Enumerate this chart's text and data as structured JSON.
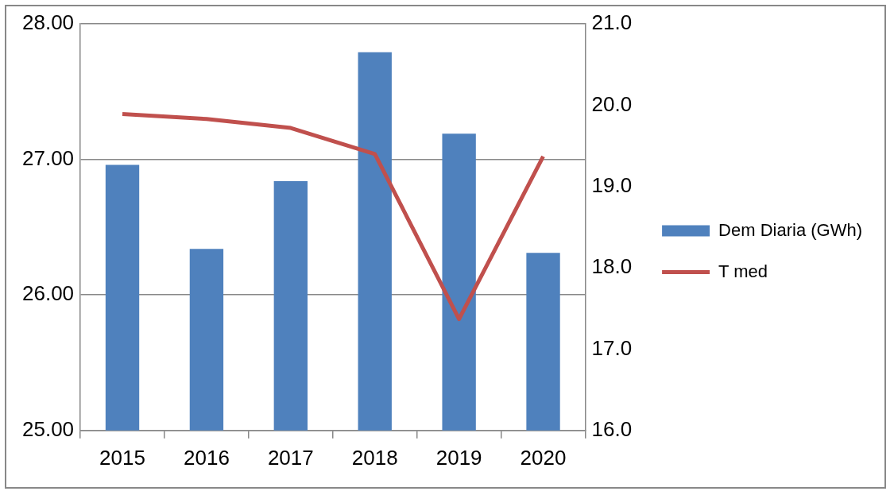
{
  "chart_data": {
    "type": "bar",
    "categories": [
      "2015",
      "2016",
      "2017",
      "2018",
      "2019",
      "2020"
    ],
    "series": [
      {
        "name": "Dem Diaria (GWh)",
        "type": "bar",
        "color": "#4f81bd",
        "values": [
          26.96,
          26.34,
          26.84,
          27.79,
          27.19,
          26.31
        ]
      },
      {
        "name": "T med",
        "type": "line",
        "axis": "y2",
        "color": "#c0504d",
        "values": [
          19.89,
          19.83,
          19.72,
          19.4,
          17.37,
          19.37
        ]
      }
    ],
    "ylim": [
      25,
      28
    ],
    "yticks": [
      {
        "value": 25,
        "label": "25.00"
      },
      {
        "value": 26,
        "label": "26.00"
      },
      {
        "value": 27,
        "label": "27.00"
      },
      {
        "value": 28,
        "label": "28.00"
      }
    ],
    "y2lim": [
      16,
      21
    ],
    "y2ticks": [
      {
        "value": 16,
        "label": "16.0"
      },
      {
        "value": 17,
        "label": "17.0"
      },
      {
        "value": 18,
        "label": "18.0"
      },
      {
        "value": 19,
        "label": "19.0"
      },
      {
        "value": 20,
        "label": "20.0"
      },
      {
        "value": 21,
        "label": "21.0"
      }
    ],
    "grid": "y",
    "legend": "right",
    "marker": "none"
  }
}
